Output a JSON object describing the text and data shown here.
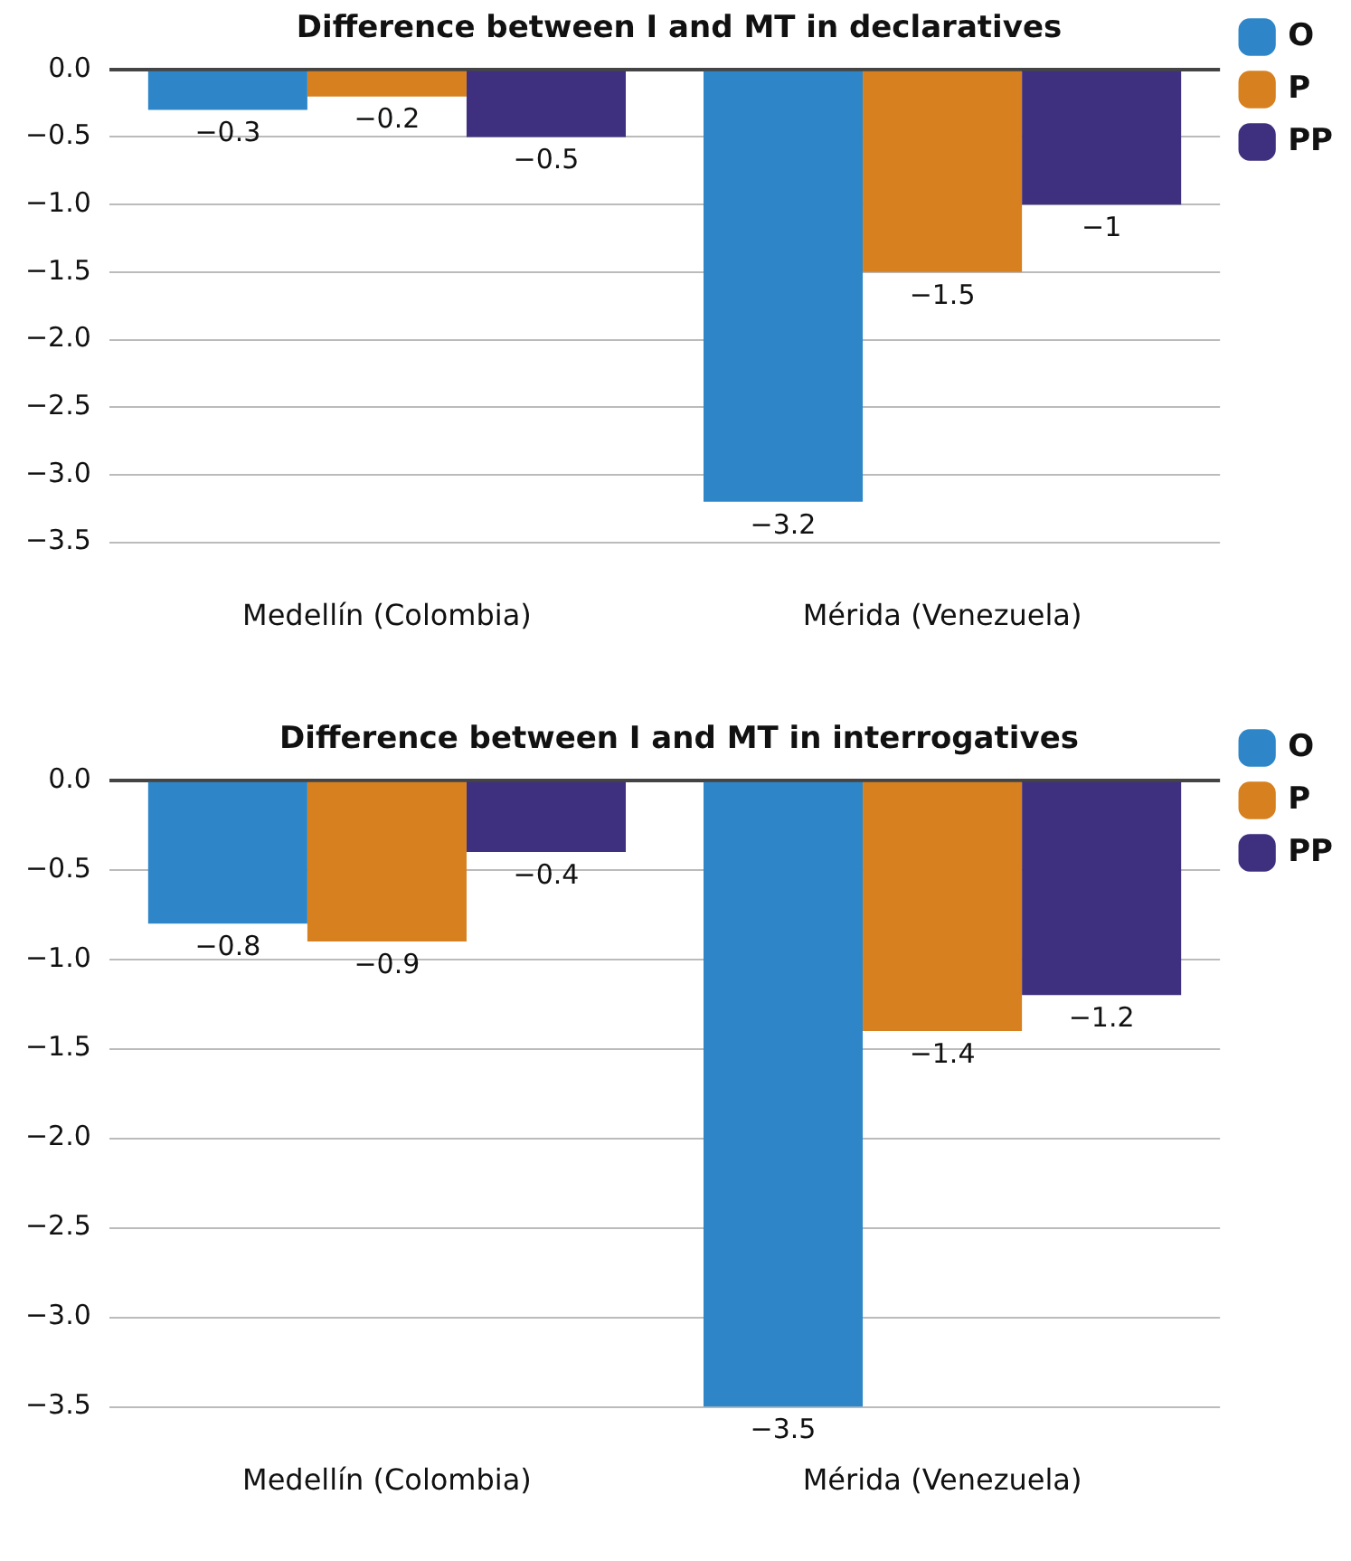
{
  "chart_data": [
    {
      "type": "bar",
      "title": "Difference between I and MT in declaratives",
      "categories": [
        "Medellín (Colombia)",
        "Mérida (Venezuela)"
      ],
      "series": [
        {
          "name": "O",
          "color": "#2e86c8",
          "values": [
            -0.3,
            -3.2
          ]
        },
        {
          "name": "P",
          "color": "#d6801f",
          "values": [
            -0.2,
            -1.5
          ]
        },
        {
          "name": "PP",
          "color": "#3f2f7f",
          "values": [
            -0.5,
            -1
          ]
        }
      ],
      "ylim": [
        -3.5,
        0
      ],
      "yticks": [
        {
          "value": 0,
          "label": "0.0"
        },
        {
          "value": -0.5,
          "label": "−0.5"
        },
        {
          "value": -1,
          "label": "−1.0"
        },
        {
          "value": -1.5,
          "label": "−1.5"
        },
        {
          "value": -2,
          "label": "−2.0"
        },
        {
          "value": -2.5,
          "label": "−2.5"
        },
        {
          "value": -3,
          "label": "−3.0"
        },
        {
          "value": -3.5,
          "label": "−3.5"
        }
      ],
      "grid": "y",
      "legend": "top right",
      "data_labels": true
    },
    {
      "type": "bar",
      "title": "Difference between I and MT in interrogatives",
      "categories": [
        "Medellín (Colombia)",
        "Mérida (Venezuela)"
      ],
      "series": [
        {
          "name": "O",
          "color": "#2e86c8",
          "values": [
            -0.8,
            -3.5
          ]
        },
        {
          "name": "P",
          "color": "#d6801f",
          "values": [
            -0.9,
            -1.4
          ]
        },
        {
          "name": "PP",
          "color": "#3f2f7f",
          "values": [
            -0.4,
            -1.2
          ]
        }
      ],
      "ylim": [
        -3.5,
        0
      ],
      "yticks": [
        {
          "value": 0,
          "label": "0.0"
        },
        {
          "value": -0.5,
          "label": "−0.5"
        },
        {
          "value": -1,
          "label": "−1.0"
        },
        {
          "value": -1.5,
          "label": "−1.5"
        },
        {
          "value": -2,
          "label": "−2.0"
        },
        {
          "value": -2.5,
          "label": "−2.5"
        },
        {
          "value": -3,
          "label": "−3.0"
        },
        {
          "value": -3.5,
          "label": "−3.5"
        }
      ],
      "grid": "y",
      "legend": "top right",
      "data_labels": true
    }
  ]
}
